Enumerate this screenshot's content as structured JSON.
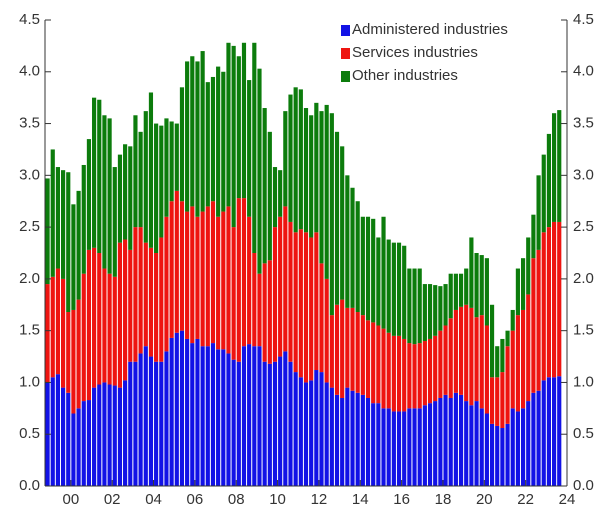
{
  "chart_data": {
    "type": "stacked_bar",
    "x": [
      1998.875,
      1999.125,
      1999.375,
      1999.625,
      1999.875,
      2000.125,
      2000.375,
      2000.625,
      2000.875,
      2001.125,
      2001.375,
      2001.625,
      2001.875,
      2002.125,
      2002.375,
      2002.625,
      2002.875,
      2003.125,
      2003.375,
      2003.625,
      2003.875,
      2004.125,
      2004.375,
      2004.625,
      2004.875,
      2005.125,
      2005.375,
      2005.625,
      2005.875,
      2006.125,
      2006.375,
      2006.625,
      2006.875,
      2007.125,
      2007.375,
      2007.625,
      2007.875,
      2008.125,
      2008.375,
      2008.625,
      2008.875,
      2009.125,
      2009.375,
      2009.625,
      2009.875,
      2010.125,
      2010.375,
      2010.625,
      2010.875,
      2011.125,
      2011.375,
      2011.625,
      2011.875,
      2012.125,
      2012.375,
      2012.625,
      2012.875,
      2013.125,
      2013.375,
      2013.625,
      2013.875,
      2014.125,
      2014.375,
      2014.625,
      2014.875,
      2015.125,
      2015.375,
      2015.625,
      2015.875,
      2016.125,
      2016.375,
      2016.625,
      2016.875,
      2017.125,
      2017.375,
      2017.625,
      2017.875,
      2018.125,
      2018.375,
      2018.625,
      2018.875,
      2019.125,
      2019.375,
      2019.625,
      2019.875,
      2020.125,
      2020.375,
      2020.625,
      2020.875,
      2021.125,
      2021.375,
      2021.625,
      2021.875,
      2022.125,
      2022.375,
      2022.625,
      2022.875,
      2023.125,
      2023.375,
      2023.625
    ],
    "bar_width": 0.25,
    "series": [
      {
        "name": "Administered industries",
        "color": "#1212e6",
        "values": [
          1.0,
          1.05,
          1.08,
          0.95,
          0.9,
          0.7,
          0.75,
          0.82,
          0.83,
          0.95,
          0.98,
          1.0,
          0.98,
          0.97,
          0.95,
          1.02,
          1.2,
          1.2,
          1.28,
          1.35,
          1.25,
          1.2,
          1.2,
          1.3,
          1.43,
          1.48,
          1.5,
          1.42,
          1.38,
          1.42,
          1.35,
          1.35,
          1.38,
          1.32,
          1.32,
          1.28,
          1.22,
          1.2,
          1.35,
          1.37,
          1.35,
          1.35,
          1.2,
          1.18,
          1.2,
          1.25,
          1.3,
          1.2,
          1.1,
          1.05,
          1.0,
          1.02,
          1.12,
          1.1,
          1.0,
          0.95,
          0.88,
          0.85,
          0.95,
          0.92,
          0.9,
          0.88,
          0.85,
          0.8,
          0.8,
          0.75,
          0.75,
          0.72,
          0.72,
          0.72,
          0.75,
          0.75,
          0.75,
          0.78,
          0.8,
          0.82,
          0.85,
          0.88,
          0.85,
          0.9,
          0.88,
          0.82,
          0.78,
          0.82,
          0.75,
          0.7,
          0.6,
          0.58,
          0.56,
          0.6,
          0.75,
          0.72,
          0.75,
          0.82,
          0.9,
          0.92,
          1.02,
          1.05,
          1.05,
          1.06
        ]
      },
      {
        "name": "Services industries",
        "color": "#ee1410",
        "values": [
          0.95,
          0.97,
          1.02,
          1.05,
          0.78,
          1.0,
          1.05,
          1.23,
          1.45,
          1.35,
          1.27,
          1.1,
          1.07,
          1.05,
          1.4,
          1.36,
          1.08,
          1.3,
          1.22,
          1.0,
          1.05,
          1.05,
          1.2,
          1.3,
          1.32,
          1.37,
          1.25,
          1.23,
          1.32,
          1.18,
          1.3,
          1.35,
          1.37,
          1.28,
          1.33,
          1.42,
          1.28,
          1.58,
          1.43,
          1.23,
          0.9,
          0.7,
          0.95,
          1.0,
          1.3,
          1.35,
          1.4,
          1.35,
          1.35,
          1.43,
          1.45,
          1.38,
          1.33,
          1.05,
          1.0,
          0.7,
          0.87,
          0.95,
          0.77,
          0.8,
          0.78,
          0.77,
          0.75,
          0.78,
          0.75,
          0.77,
          0.73,
          0.73,
          0.73,
          0.7,
          0.63,
          0.62,
          0.63,
          0.62,
          0.62,
          0.63,
          0.65,
          0.67,
          0.77,
          0.8,
          0.85,
          0.93,
          0.94,
          0.81,
          0.9,
          0.85,
          0.45,
          0.47,
          0.54,
          0.75,
          0.75,
          0.93,
          0.95,
          1.03,
          1.3,
          1.36,
          1.43,
          1.45,
          1.5,
          1.49
        ]
      },
      {
        "name": "Other industries",
        "color": "#0c7c0c",
        "values": [
          1.02,
          1.23,
          0.98,
          1.05,
          1.35,
          1.02,
          1.05,
          1.05,
          1.07,
          1.45,
          1.48,
          1.48,
          1.5,
          1.06,
          0.85,
          0.92,
          1.0,
          1.08,
          0.92,
          1.27,
          1.5,
          1.25,
          1.08,
          0.95,
          0.77,
          0.65,
          1.1,
          1.45,
          1.45,
          1.5,
          1.55,
          1.2,
          1.2,
          1.45,
          1.35,
          1.58,
          1.75,
          1.37,
          1.5,
          1.32,
          2.03,
          1.98,
          1.5,
          1.24,
          0.58,
          0.45,
          0.92,
          1.23,
          1.4,
          1.35,
          1.2,
          1.18,
          1.25,
          1.47,
          1.68,
          1.95,
          1.67,
          1.48,
          1.28,
          1.16,
          1.07,
          0.95,
          1.0,
          1.0,
          0.85,
          1.08,
          0.9,
          0.9,
          0.9,
          0.9,
          0.72,
          0.73,
          0.72,
          0.55,
          0.53,
          0.49,
          0.43,
          0.4,
          0.43,
          0.35,
          0.32,
          0.35,
          0.68,
          0.62,
          0.58,
          0.65,
          0.7,
          0.3,
          0.32,
          0.15,
          0.2,
          0.45,
          0.5,
          0.55,
          0.42,
          0.72,
          0.75,
          0.9,
          1.05,
          1.08
        ]
      }
    ],
    "xlim": [
      1998.75,
      2024
    ],
    "xticks": [
      {
        "value": 2000,
        "label": "00"
      },
      {
        "value": 2002,
        "label": "02"
      },
      {
        "value": 2004,
        "label": "04"
      },
      {
        "value": 2006,
        "label": "06"
      },
      {
        "value": 2008,
        "label": "08"
      },
      {
        "value": 2010,
        "label": "10"
      },
      {
        "value": 2012,
        "label": "12"
      },
      {
        "value": 2014,
        "label": "14"
      },
      {
        "value": 2016,
        "label": "16"
      },
      {
        "value": 2018,
        "label": "18"
      },
      {
        "value": 2020,
        "label": "20"
      },
      {
        "value": 2022,
        "label": "22"
      },
      {
        "value": 2024,
        "label": "24"
      }
    ],
    "ylim": [
      0,
      4.5
    ],
    "yticks": [
      {
        "value": 0,
        "label": "0.0"
      },
      0.5,
      {
        "value": 1,
        "label": "1.0"
      },
      1.5,
      {
        "value": 2,
        "label": "2.0"
      },
      2.5,
      {
        "value": 3,
        "label": "3.0"
      },
      3.5,
      {
        "value": 4,
        "label": "4.0"
      },
      4.5
    ],
    "y2lim": [
      0,
      4.5
    ],
    "y2ticks": [
      {
        "value": 0,
        "label": "0.0"
      },
      0.5,
      {
        "value": 1,
        "label": "1.0"
      },
      1.5,
      {
        "value": 2,
        "label": "2.0"
      },
      2.5,
      {
        "value": 3,
        "label": "3.0"
      },
      3.5,
      {
        "value": 4,
        "label": "4.0"
      },
      4.5
    ],
    "legend": "upper right"
  }
}
